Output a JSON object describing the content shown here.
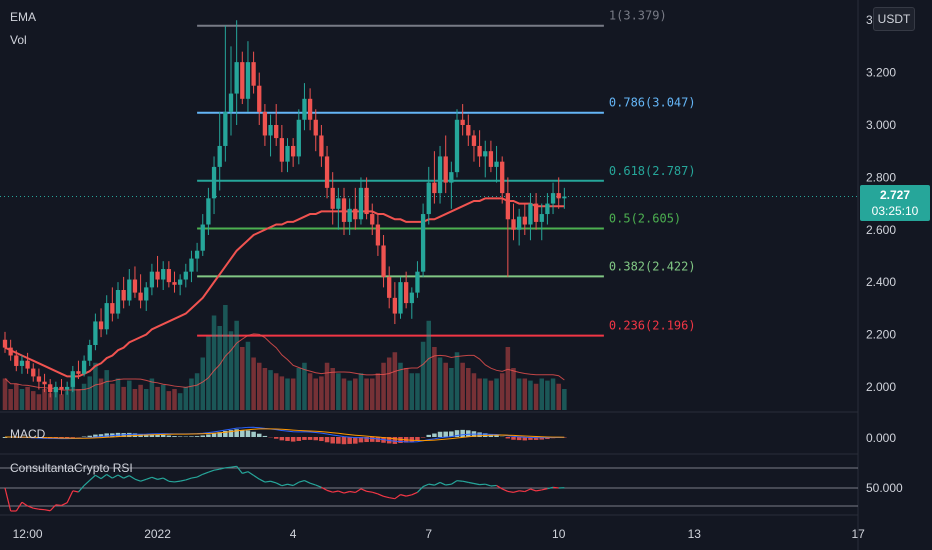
{
  "legend": {
    "ema": "EMA",
    "vol": "Vol",
    "macd": "MACD",
    "rsi": "ConsultantaCrypto RSI"
  },
  "axis": {
    "currency": "USDT"
  },
  "current": {
    "price": "2.727",
    "countdown": "03:25:10"
  },
  "colors": {
    "background": "#131722",
    "up": "#26a69a",
    "down": "#ef5350",
    "ema": "#f05350",
    "grid": "#2a2e39",
    "axis_text": "#d1d4dc"
  },
  "chart_data": [
    {
      "type": "candlestick",
      "y_ticks": [
        "3.400",
        "3.200",
        "3.000",
        "2.800",
        "2.600",
        "2.400",
        "2.200",
        "2.000"
      ],
      "ylim": [
        1.95,
        3.42
      ],
      "x_ticks": [
        "12:00",
        "2022",
        "4",
        "7",
        "10",
        "13",
        "17"
      ],
      "x_tick_bars": [
        4,
        27,
        51,
        75,
        98,
        122,
        151
      ],
      "x_range_bars": [
        0,
        175
      ],
      "current_price": 2.727,
      "fib_levels": [
        {
          "label": "1(3.379)",
          "value": 3.379,
          "color": "#787b86"
        },
        {
          "label": "0.786(3.047)",
          "value": 3.047,
          "color": "#64b5f6"
        },
        {
          "label": "0.618(2.787)",
          "value": 2.787,
          "color": "#26a69a"
        },
        {
          "label": "0.5(2.605)",
          "value": 2.605,
          "color": "#4caf50"
        },
        {
          "label": "0.382(2.422)",
          "value": 2.422,
          "color": "#81c784"
        },
        {
          "label": "0.236(2.196)",
          "value": 2.196,
          "color": "#f23645"
        }
      ],
      "candles": [
        [
          2.18,
          2.21,
          2.13,
          2.15
        ],
        [
          2.15,
          2.18,
          2.1,
          2.12
        ],
        [
          2.12,
          2.14,
          2.06,
          2.08
        ],
        [
          2.08,
          2.12,
          2.05,
          2.1
        ],
        [
          2.1,
          2.13,
          2.05,
          2.07
        ],
        [
          2.07,
          2.09,
          2.02,
          2.04
        ],
        [
          2.04,
          2.07,
          1.99,
          2.02
        ],
        [
          2.02,
          2.05,
          1.98,
          2.01
        ],
        [
          2.01,
          2.03,
          1.96,
          1.98
        ],
        [
          1.98,
          2.02,
          1.96,
          2.0
        ],
        [
          2.0,
          2.03,
          1.97,
          1.99
        ],
        [
          1.99,
          2.02,
          1.97,
          2.0
        ],
        [
          2.0,
          2.08,
          1.98,
          2.06
        ],
        [
          2.06,
          2.1,
          2.03,
          2.05
        ],
        [
          2.05,
          2.12,
          2.04,
          2.1
        ],
        [
          2.1,
          2.18,
          2.08,
          2.16
        ],
        [
          2.16,
          2.28,
          2.14,
          2.25
        ],
        [
          2.25,
          2.3,
          2.19,
          2.22
        ],
        [
          2.22,
          2.35,
          2.2,
          2.32
        ],
        [
          2.32,
          2.38,
          2.25,
          2.28
        ],
        [
          2.28,
          2.4,
          2.26,
          2.37
        ],
        [
          2.37,
          2.42,
          2.3,
          2.33
        ],
        [
          2.33,
          2.45,
          2.31,
          2.41
        ],
        [
          2.41,
          2.46,
          2.34,
          2.36
        ],
        [
          2.36,
          2.43,
          2.3,
          2.33
        ],
        [
          2.33,
          2.4,
          2.29,
          2.38
        ],
        [
          2.38,
          2.47,
          2.35,
          2.44
        ],
        [
          2.44,
          2.5,
          2.38,
          2.41
        ],
        [
          2.41,
          2.48,
          2.37,
          2.45
        ],
        [
          2.45,
          2.48,
          2.38,
          2.4
        ],
        [
          2.4,
          2.44,
          2.36,
          2.39
        ],
        [
          2.39,
          2.43,
          2.35,
          2.41
        ],
        [
          2.41,
          2.47,
          2.38,
          2.44
        ],
        [
          2.44,
          2.52,
          2.4,
          2.49
        ],
        [
          2.49,
          2.55,
          2.44,
          2.52
        ],
        [
          2.52,
          2.66,
          2.5,
          2.62
        ],
        [
          2.62,
          2.76,
          2.58,
          2.72
        ],
        [
          2.72,
          2.88,
          2.66,
          2.84
        ],
        [
          2.84,
          3.05,
          2.75,
          2.92
        ],
        [
          2.92,
          3.38,
          2.86,
          3.05
        ],
        [
          3.05,
          3.3,
          2.96,
          3.12
        ],
        [
          3.12,
          3.4,
          3.0,
          3.24
        ],
        [
          3.24,
          3.28,
          3.08,
          3.1
        ],
        [
          3.1,
          3.32,
          3.05,
          3.24
        ],
        [
          3.24,
          3.28,
          3.12,
          3.15
        ],
        [
          3.15,
          3.2,
          3.0,
          3.05
        ],
        [
          3.05,
          3.08,
          2.92,
          2.96
        ],
        [
          2.96,
          3.04,
          2.88,
          3.0
        ],
        [
          3.0,
          3.08,
          2.92,
          2.95
        ],
        [
          2.95,
          3.0,
          2.82,
          2.86
        ],
        [
          2.86,
          2.95,
          2.82,
          2.92
        ],
        [
          2.92,
          2.95,
          2.84,
          2.88
        ],
        [
          2.88,
          3.06,
          2.85,
          3.02
        ],
        [
          3.02,
          3.16,
          2.98,
          3.1
        ],
        [
          3.1,
          3.14,
          2.98,
          3.02
        ],
        [
          3.02,
          3.06,
          2.9,
          2.96
        ],
        [
          2.96,
          3.0,
          2.84,
          2.88
        ],
        [
          2.88,
          2.92,
          2.72,
          2.76
        ],
        [
          2.76,
          2.82,
          2.62,
          2.68
        ],
        [
          2.68,
          2.76,
          2.6,
          2.72
        ],
        [
          2.72,
          2.76,
          2.58,
          2.63
        ],
        [
          2.63,
          2.72,
          2.58,
          2.68
        ],
        [
          2.68,
          2.76,
          2.6,
          2.64
        ],
        [
          2.64,
          2.8,
          2.62,
          2.76
        ],
        [
          2.76,
          2.8,
          2.64,
          2.66
        ],
        [
          2.66,
          2.7,
          2.58,
          2.62
        ],
        [
          2.62,
          2.66,
          2.5,
          2.54
        ],
        [
          2.54,
          2.58,
          2.38,
          2.42
        ],
        [
          2.42,
          2.46,
          2.3,
          2.34
        ],
        [
          2.34,
          2.4,
          2.24,
          2.28
        ],
        [
          2.28,
          2.42,
          2.26,
          2.4
        ],
        [
          2.4,
          2.44,
          2.3,
          2.32
        ],
        [
          2.32,
          2.38,
          2.26,
          2.36
        ],
        [
          2.36,
          2.48,
          2.34,
          2.44
        ],
        [
          2.44,
          2.7,
          2.42,
          2.66
        ],
        [
          2.66,
          2.84,
          2.62,
          2.78
        ],
        [
          2.78,
          2.9,
          2.7,
          2.74
        ],
        [
          2.74,
          2.92,
          2.7,
          2.88
        ],
        [
          2.88,
          2.96,
          2.74,
          2.78
        ],
        [
          2.78,
          2.86,
          2.68,
          2.82
        ],
        [
          2.82,
          3.06,
          2.8,
          3.02
        ],
        [
          3.02,
          3.08,
          2.96,
          3.0
        ],
        [
          3.0,
          3.04,
          2.92,
          2.96
        ],
        [
          2.96,
          2.98,
          2.86,
          2.92
        ],
        [
          2.92,
          2.98,
          2.84,
          2.88
        ],
        [
          2.88,
          2.94,
          2.8,
          2.9
        ],
        [
          2.9,
          2.94,
          2.82,
          2.84
        ],
        [
          2.84,
          2.92,
          2.78,
          2.86
        ],
        [
          2.86,
          2.88,
          2.7,
          2.74
        ],
        [
          2.74,
          2.8,
          2.42,
          2.64
        ],
        [
          2.64,
          2.7,
          2.56,
          2.6
        ],
        [
          2.6,
          2.68,
          2.54,
          2.65
        ],
        [
          2.65,
          2.7,
          2.58,
          2.62
        ],
        [
          2.62,
          2.74,
          2.56,
          2.7
        ],
        [
          2.7,
          2.74,
          2.6,
          2.63
        ],
        [
          2.63,
          2.7,
          2.56,
          2.66
        ],
        [
          2.66,
          2.74,
          2.62,
          2.7
        ],
        [
          2.7,
          2.78,
          2.66,
          2.74
        ],
        [
          2.74,
          2.8,
          2.68,
          2.72
        ],
        [
          2.72,
          2.76,
          2.68,
          2.727
        ]
      ],
      "ema": [
        2.15,
        2.14,
        2.13,
        2.12,
        2.11,
        2.1,
        2.09,
        2.08,
        2.07,
        2.06,
        2.05,
        2.04,
        2.04,
        2.04,
        2.05,
        2.06,
        2.08,
        2.09,
        2.11,
        2.12,
        2.14,
        2.15,
        2.17,
        2.18,
        2.19,
        2.2,
        2.22,
        2.23,
        2.24,
        2.25,
        2.26,
        2.27,
        2.28,
        2.3,
        2.32,
        2.34,
        2.37,
        2.4,
        2.43,
        2.46,
        2.49,
        2.52,
        2.54,
        2.56,
        2.58,
        2.59,
        2.6,
        2.61,
        2.62,
        2.62,
        2.63,
        2.63,
        2.64,
        2.65,
        2.66,
        2.66,
        2.67,
        2.67,
        2.67,
        2.67,
        2.67,
        2.67,
        2.67,
        2.67,
        2.67,
        2.67,
        2.66,
        2.66,
        2.65,
        2.64,
        2.64,
        2.63,
        2.63,
        2.63,
        2.63,
        2.64,
        2.64,
        2.65,
        2.66,
        2.67,
        2.68,
        2.69,
        2.7,
        2.71,
        2.71,
        2.72,
        2.72,
        2.72,
        2.72,
        2.71,
        2.71,
        2.7,
        2.7,
        2.7,
        2.69,
        2.69,
        2.69,
        2.69,
        2.69,
        2.69
      ],
      "volume": [
        0.3,
        0.2,
        0.25,
        0.2,
        0.22,
        0.18,
        0.15,
        0.2,
        0.16,
        0.2,
        0.15,
        0.18,
        0.28,
        0.2,
        0.25,
        0.32,
        0.45,
        0.3,
        0.38,
        0.25,
        0.3,
        0.22,
        0.28,
        0.2,
        0.24,
        0.2,
        0.3,
        0.22,
        0.24,
        0.18,
        0.2,
        0.16,
        0.22,
        0.3,
        0.35,
        0.5,
        0.7,
        0.9,
        0.8,
        1.0,
        0.75,
        0.85,
        0.6,
        0.65,
        0.5,
        0.45,
        0.4,
        0.38,
        0.35,
        0.32,
        0.3,
        0.3,
        0.4,
        0.45,
        0.35,
        0.3,
        0.32,
        0.45,
        0.4,
        0.35,
        0.3,
        0.28,
        0.3,
        0.35,
        0.3,
        0.3,
        0.35,
        0.45,
        0.5,
        0.55,
        0.45,
        0.4,
        0.35,
        0.35,
        0.65,
        0.85,
        0.6,
        0.5,
        0.45,
        0.4,
        0.55,
        0.45,
        0.4,
        0.35,
        0.3,
        0.3,
        0.28,
        0.3,
        0.35,
        0.6,
        0.4,
        0.3,
        0.3,
        0.28,
        0.25,
        0.3,
        0.28,
        0.3,
        0.25,
        0.2
      ]
    },
    {
      "type": "histogram",
      "name": "MACD",
      "y_ticks": [
        "0.000"
      ]
    },
    {
      "type": "line",
      "name": "ConsultantaCrypto RSI",
      "y_ticks": [
        "50.000"
      ]
    }
  ]
}
